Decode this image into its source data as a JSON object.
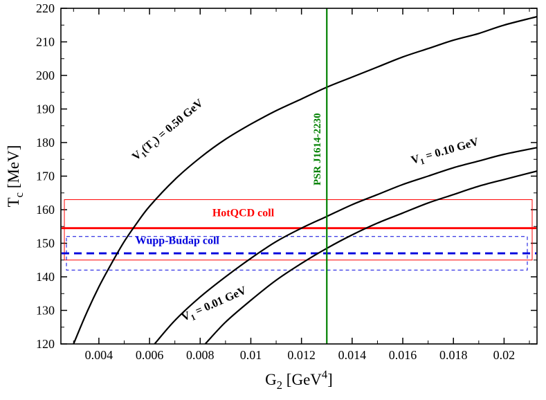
{
  "chart_data": {
    "type": "line",
    "title": "",
    "xlabel": "G_2  [GeV^4]",
    "ylabel": "T_c  [MeV]",
    "xlim": [
      0.0025,
      0.0213
    ],
    "ylim": [
      120,
      220
    ],
    "grid": false,
    "xticks": {
      "values": [
        0.004,
        0.006,
        0.008,
        0.01,
        0.012,
        0.014,
        0.016,
        0.018,
        0.02
      ],
      "labels": [
        "0.004",
        "0.006",
        "0.008",
        "0.01",
        "0.012",
        "0.014",
        "0.016",
        "0.018",
        "0.02"
      ],
      "minor": [
        0.003,
        0.005,
        0.007,
        0.009,
        0.011,
        0.013,
        0.015,
        0.017,
        0.019,
        0.021
      ]
    },
    "yticks": {
      "values": [
        120,
        130,
        140,
        150,
        160,
        170,
        180,
        190,
        200,
        210,
        220
      ],
      "labels": [
        "120",
        "130",
        "140",
        "150",
        "160",
        "170",
        "180",
        "190",
        "200",
        "210",
        "220"
      ],
      "minor": [
        125,
        135,
        145,
        155,
        165,
        175,
        185,
        195,
        205,
        215
      ]
    },
    "series": [
      {
        "key": "v1tc-0.50gev",
        "name": "V_1(T_c) = 0.50 GeV",
        "color": "#000000",
        "width": 2.2,
        "label": {
          "text": "V_1(T_c) = 0.50 GeV",
          "x": 0.0068,
          "y": 183,
          "angle": -40
        },
        "points": [
          [
            0.003,
            120
          ],
          [
            0.0035,
            129
          ],
          [
            0.004,
            137
          ],
          [
            0.0045,
            144
          ],
          [
            0.005,
            150.5
          ],
          [
            0.0055,
            156
          ],
          [
            0.006,
            161
          ],
          [
            0.007,
            169
          ],
          [
            0.008,
            175.5
          ],
          [
            0.009,
            181
          ],
          [
            0.01,
            185.5
          ],
          [
            0.011,
            189.5
          ],
          [
            0.012,
            193
          ],
          [
            0.013,
            196.5
          ],
          [
            0.014,
            199.5
          ],
          [
            0.015,
            202.5
          ],
          [
            0.016,
            205.5
          ],
          [
            0.017,
            208
          ],
          [
            0.018,
            210.5
          ],
          [
            0.019,
            212.5
          ],
          [
            0.02,
            215
          ],
          [
            0.0213,
            217.5
          ]
        ]
      },
      {
        "key": "v1-0.10gev",
        "name": "V_1 = 0.10 GeV",
        "color": "#000000",
        "width": 2.2,
        "label": {
          "text": "V_1 = 0.10 GeV",
          "x": 0.0177,
          "y": 176.5,
          "angle": -16
        },
        "points": [
          [
            0.0062,
            120
          ],
          [
            0.007,
            127
          ],
          [
            0.008,
            134
          ],
          [
            0.009,
            140
          ],
          [
            0.01,
            145.5
          ],
          [
            0.011,
            150.5
          ],
          [
            0.012,
            154.5
          ],
          [
            0.013,
            158
          ],
          [
            0.014,
            161.5
          ],
          [
            0.015,
            164.5
          ],
          [
            0.016,
            167.5
          ],
          [
            0.017,
            170
          ],
          [
            0.018,
            172.5
          ],
          [
            0.019,
            174.5
          ],
          [
            0.02,
            176.5
          ],
          [
            0.0213,
            178.5
          ]
        ]
      },
      {
        "key": "v1-0.01gev",
        "name": "V_1 = 0.01 GeV",
        "color": "#000000",
        "width": 2.2,
        "label": {
          "text": "V_1 = 0.01 GeV",
          "x": 0.0086,
          "y": 131,
          "angle": -24
        },
        "points": [
          [
            0.0082,
            120
          ],
          [
            0.009,
            126.5
          ],
          [
            0.01,
            133
          ],
          [
            0.011,
            139
          ],
          [
            0.012,
            144
          ],
          [
            0.013,
            148.5
          ],
          [
            0.014,
            152.5
          ],
          [
            0.015,
            156
          ],
          [
            0.016,
            159
          ],
          [
            0.017,
            162
          ],
          [
            0.018,
            164.5
          ],
          [
            0.019,
            167
          ],
          [
            0.02,
            169
          ],
          [
            0.0213,
            171.5
          ]
        ]
      }
    ],
    "vline": {
      "x": 0.013,
      "color": "#008000",
      "width": 2.2,
      "label": "PSR J1614-2230",
      "label_y": 178
    },
    "bands": [
      {
        "label": "HotQCD coll",
        "color": "#ff0000",
        "central": 154.5,
        "low": 145,
        "high": 163,
        "dash": false,
        "label_x": 0.0097,
        "label_y": 158
      },
      {
        "label": "Wupp-Budap coll",
        "color": "#0000dd",
        "central": 147,
        "low": 142,
        "high": 152,
        "dash": true,
        "label_x": 0.0071,
        "label_y": 149.8
      }
    ]
  }
}
